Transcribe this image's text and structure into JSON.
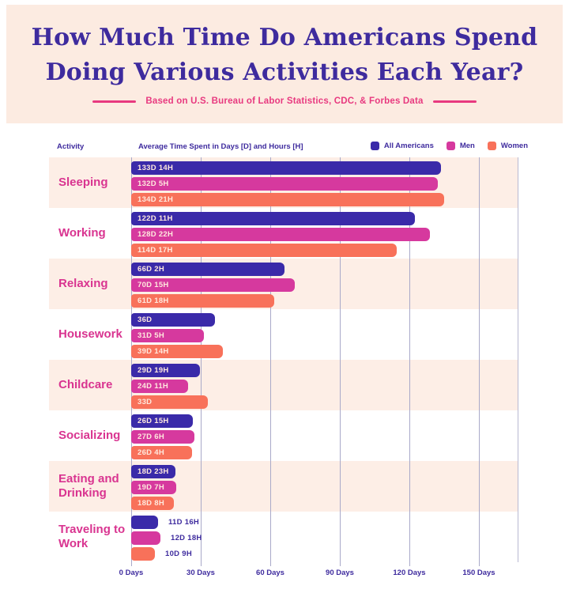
{
  "page": {
    "title_line1": "How Much Time Do Americans Spend",
    "title_line2": "Doing Various Activities Each Year?",
    "subtitle": "Based on U.S. Bureau of Labor Statistics, CDC, & Forbes Data"
  },
  "colors": {
    "header_bg": "#fcebe1",
    "row_alt_bg": "#fdeee6",
    "title_indigo": "#3e2b9e",
    "subtitle_pink": "#e8397f",
    "activity_pink": "#d93490",
    "bar_all_americans": "#3a2aa9",
    "bar_men": "#d6399e",
    "bar_women": "#f8715a",
    "bar_label_text": "#ffe9de",
    "gridline": "#a9a9c9"
  },
  "chart_header": {
    "activity_label": "Activity",
    "value_label": "Average Time Spent in Days [D] and Hours [H]"
  },
  "legend": [
    {
      "label": "All Americans",
      "color": "#3a2aa9"
    },
    {
      "label": "Men",
      "color": "#d6399e"
    },
    {
      "label": "Women",
      "color": "#f8715a"
    }
  ],
  "chart_data": {
    "type": "bar",
    "orientation": "horizontal",
    "title": "How Much Time Do Americans Spend Doing Various Activities Each Year?",
    "subtitle": "Based on U.S. Bureau of Labor Statistics, CDC, & Forbes Data",
    "x_axis": {
      "unit": "Days",
      "ticks": [
        "0 Days",
        "30 Days",
        "60 Days",
        "90 Days",
        "120 Days",
        "150 Days"
      ],
      "tick_values": [
        0,
        30,
        60,
        90,
        120,
        150
      ],
      "max": 150,
      "grid": true
    },
    "categories": [
      "Sleeping",
      "Working",
      "Relaxing",
      "Housework",
      "Childcare",
      "Socializing",
      "Eating and Drinking",
      "Traveling to Work"
    ],
    "series": [
      {
        "name": "All Americans",
        "color": "#3a2aa9",
        "labels": [
          "133D 14H",
          "122D 11H",
          "66D 2H",
          "36D",
          "29D 19H",
          "26D 15H",
          "18D 23H",
          "11D 16H"
        ],
        "values_days": [
          133.58,
          122.46,
          66.08,
          36.0,
          29.79,
          26.63,
          18.96,
          11.67
        ]
      },
      {
        "name": "Men",
        "color": "#d6399e",
        "labels": [
          "132D 5H",
          "128D 22H",
          "70D 15H",
          "31D 5H",
          "24D 11H",
          "27D 6H",
          "19D 7H",
          "12D 18H"
        ],
        "values_days": [
          132.21,
          128.92,
          70.63,
          31.21,
          24.46,
          27.25,
          19.29,
          12.75
        ]
      },
      {
        "name": "Women",
        "color": "#f8715a",
        "labels": [
          "134D 21H",
          "114D 17H",
          "61D 18H",
          "39D 14H",
          "33D",
          "26D 4H",
          "18D 8H",
          "10D 9H"
        ],
        "values_days": [
          134.88,
          114.71,
          61.75,
          39.58,
          33.0,
          26.17,
          18.33,
          10.38
        ]
      }
    ],
    "labels_outside_for": [
      "Traveling to Work"
    ],
    "legend_position": "top-right"
  }
}
